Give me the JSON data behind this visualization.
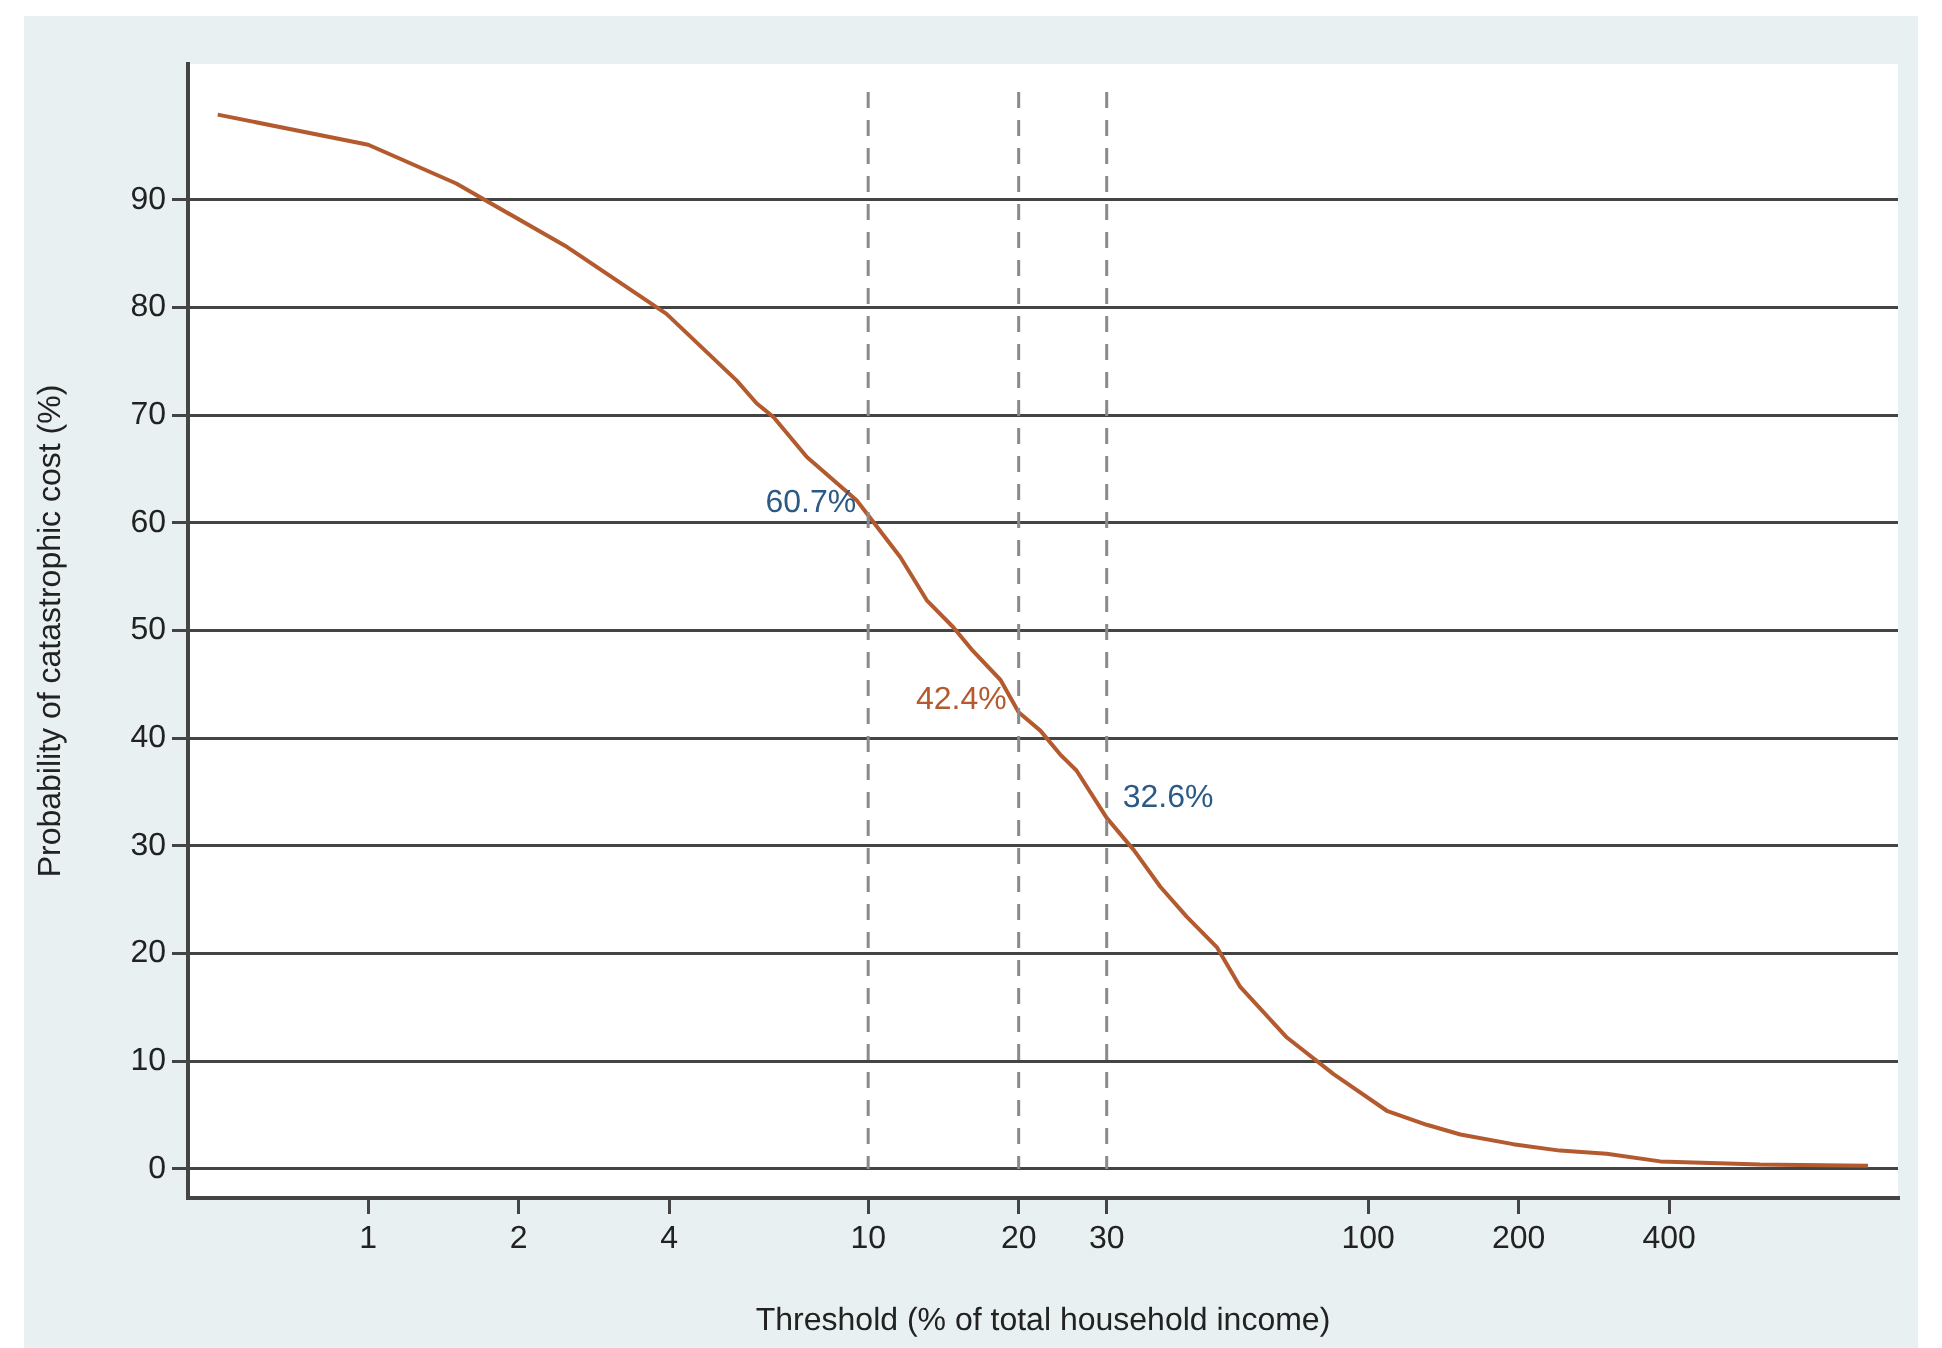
{
  "chart_data": {
    "type": "line",
    "xlabel": "Threshold (% of total household income)",
    "ylabel": "Probability of catastrophic cost (%)",
    "log": "x",
    "xlim": [
      0.436,
      1148
    ],
    "xticks": [
      1,
      2,
      4,
      10,
      20,
      30,
      100,
      200,
      400
    ],
    "ylim": [
      -2.7,
      102.6
    ],
    "yticks": [
      0,
      10,
      20,
      30,
      40,
      50,
      60,
      70,
      80,
      90
    ],
    "grid": "y",
    "marker": "none",
    "line_style": "solid",
    "series": [
      {
        "color": "#b35a2e",
        "x": [
          0.5,
          1.0,
          1.5,
          2.5,
          3.95,
          5.46,
          5.98,
          6.47,
          7.54,
          9.48,
          10,
          11.6,
          13.1,
          14.8,
          16.2,
          18.4,
          20,
          22.1,
          24.2,
          26.1,
          30,
          34.0,
          38.4,
          43.4,
          49.8,
          55.5,
          68.8,
          85.3,
          109,
          131,
          153,
          195,
          242,
          300,
          384,
          608,
          1000
        ],
        "values": [
          97.9,
          95.1,
          91.5,
          85.6,
          79.4,
          73.2,
          71.1,
          69.8,
          66.1,
          62.1,
          60.7,
          56.8,
          52.8,
          50.3,
          48.1,
          45.4,
          42.4,
          40.7,
          38.5,
          37.0,
          32.6,
          29.6,
          26.2,
          23.4,
          20.6,
          16.9,
          12.2,
          8.8,
          5.4,
          4.1,
          3.2,
          2.3,
          1.7,
          1.4,
          0.7,
          0.4,
          0.3
        ]
      }
    ],
    "ref_lines": [
      {
        "axis": "x",
        "value": 10,
        "color": "#8a8a8a",
        "line_style": "dashed"
      },
      {
        "axis": "x",
        "value": 20,
        "color": "#8a8a8a",
        "line_style": "dashed"
      },
      {
        "axis": "x",
        "value": 30,
        "color": "#8a8a8a",
        "line_style": "dashed"
      }
    ],
    "annotations": [
      {
        "text": "60.7%",
        "x": 10,
        "y": 60.7
      },
      {
        "text": "42.4%",
        "x": 20,
        "y": 42.4
      },
      {
        "text": "32.6%",
        "x": 30,
        "y": 32.6
      }
    ]
  }
}
